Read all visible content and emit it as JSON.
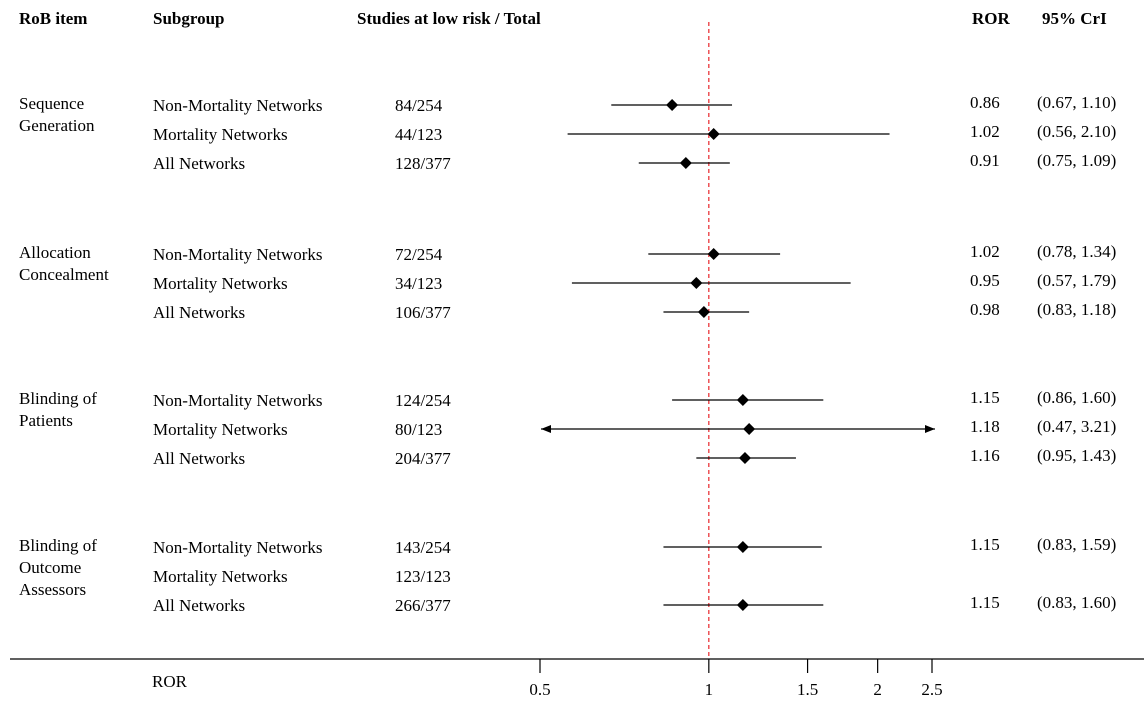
{
  "headers": {
    "rob_item": "RoB item",
    "subgroup": "Subgroup",
    "studies": "Studies at low risk / Total",
    "ror": "ROR",
    "cri": "95% CrI"
  },
  "chart_data": {
    "type": "forest",
    "xlabel": "ROR",
    "x_scale": "log",
    "xlim": [
      0.5,
      2.5
    ],
    "xticks": [
      0.5,
      1,
      1.5,
      2,
      2.5
    ],
    "xtick_labels": [
      "0.5",
      "1",
      "1.5",
      "2",
      "2.5"
    ],
    "reference_line": 1,
    "groups": [
      {
        "item_lines": [
          "Sequence",
          "Generation"
        ],
        "rows": [
          {
            "subgroup": "Non-Mortality Networks",
            "studies": "84/254",
            "ror": 0.86,
            "lo": 0.67,
            "hi": 1.1,
            "ror_text": "0.86",
            "cri_text": "(0.67, 1.10)"
          },
          {
            "subgroup": "Mortality Networks",
            "studies": "44/123",
            "ror": 1.02,
            "lo": 0.56,
            "hi": 2.1,
            "ror_text": "1.02",
            "cri_text": "(0.56, 2.10)"
          },
          {
            "subgroup": "All Networks",
            "studies": "128/377",
            "ror": 0.91,
            "lo": 0.75,
            "hi": 1.09,
            "ror_text": "0.91",
            "cri_text": "(0.75, 1.09)"
          }
        ]
      },
      {
        "item_lines": [
          "Allocation",
          "Concealment"
        ],
        "rows": [
          {
            "subgroup": "Non-Mortality Networks",
            "studies": "72/254",
            "ror": 1.02,
            "lo": 0.78,
            "hi": 1.34,
            "ror_text": "1.02",
            "cri_text": "(0.78, 1.34)"
          },
          {
            "subgroup": "Mortality Networks",
            "studies": "34/123",
            "ror": 0.95,
            "lo": 0.57,
            "hi": 1.79,
            "ror_text": "0.95",
            "cri_text": "(0.57, 1.79)"
          },
          {
            "subgroup": "All Networks",
            "studies": "106/377",
            "ror": 0.98,
            "lo": 0.83,
            "hi": 1.18,
            "ror_text": "0.98",
            "cri_text": "(0.83, 1.18)"
          }
        ]
      },
      {
        "item_lines": [
          "Blinding of",
          "Patients"
        ],
        "rows": [
          {
            "subgroup": "Non-Mortality Networks",
            "studies": "124/254",
            "ror": 1.15,
            "lo": 0.86,
            "hi": 1.6,
            "ror_text": "1.15",
            "cri_text": "(0.86, 1.60)"
          },
          {
            "subgroup": "Mortality Networks",
            "studies": "80/123",
            "ror": 1.18,
            "lo": 0.47,
            "hi": 3.21,
            "ror_text": "1.18",
            "cri_text": "(0.47, 3.21)"
          },
          {
            "subgroup": "All Networks",
            "studies": "204/377",
            "ror": 1.16,
            "lo": 0.95,
            "hi": 1.43,
            "ror_text": "1.16",
            "cri_text": "(0.95, 1.43)"
          }
        ]
      },
      {
        "item_lines": [
          "Blinding of",
          "Outcome",
          "Assessors"
        ],
        "rows": [
          {
            "subgroup": "Non-Mortality Networks",
            "studies": "143/254",
            "ror": 1.15,
            "lo": 0.83,
            "hi": 1.59,
            "ror_text": "1.15",
            "cri_text": "(0.83, 1.59)"
          },
          {
            "subgroup": "Mortality Networks",
            "studies": "123/123",
            "ror": null,
            "lo": null,
            "hi": null,
            "ror_text": "",
            "cri_text": ""
          },
          {
            "subgroup": "All Networks",
            "studies": "266/377",
            "ror": 1.15,
            "lo": 0.83,
            "hi": 1.6,
            "ror_text": "1.15",
            "cri_text": "(0.83, 1.60)"
          }
        ]
      }
    ]
  }
}
